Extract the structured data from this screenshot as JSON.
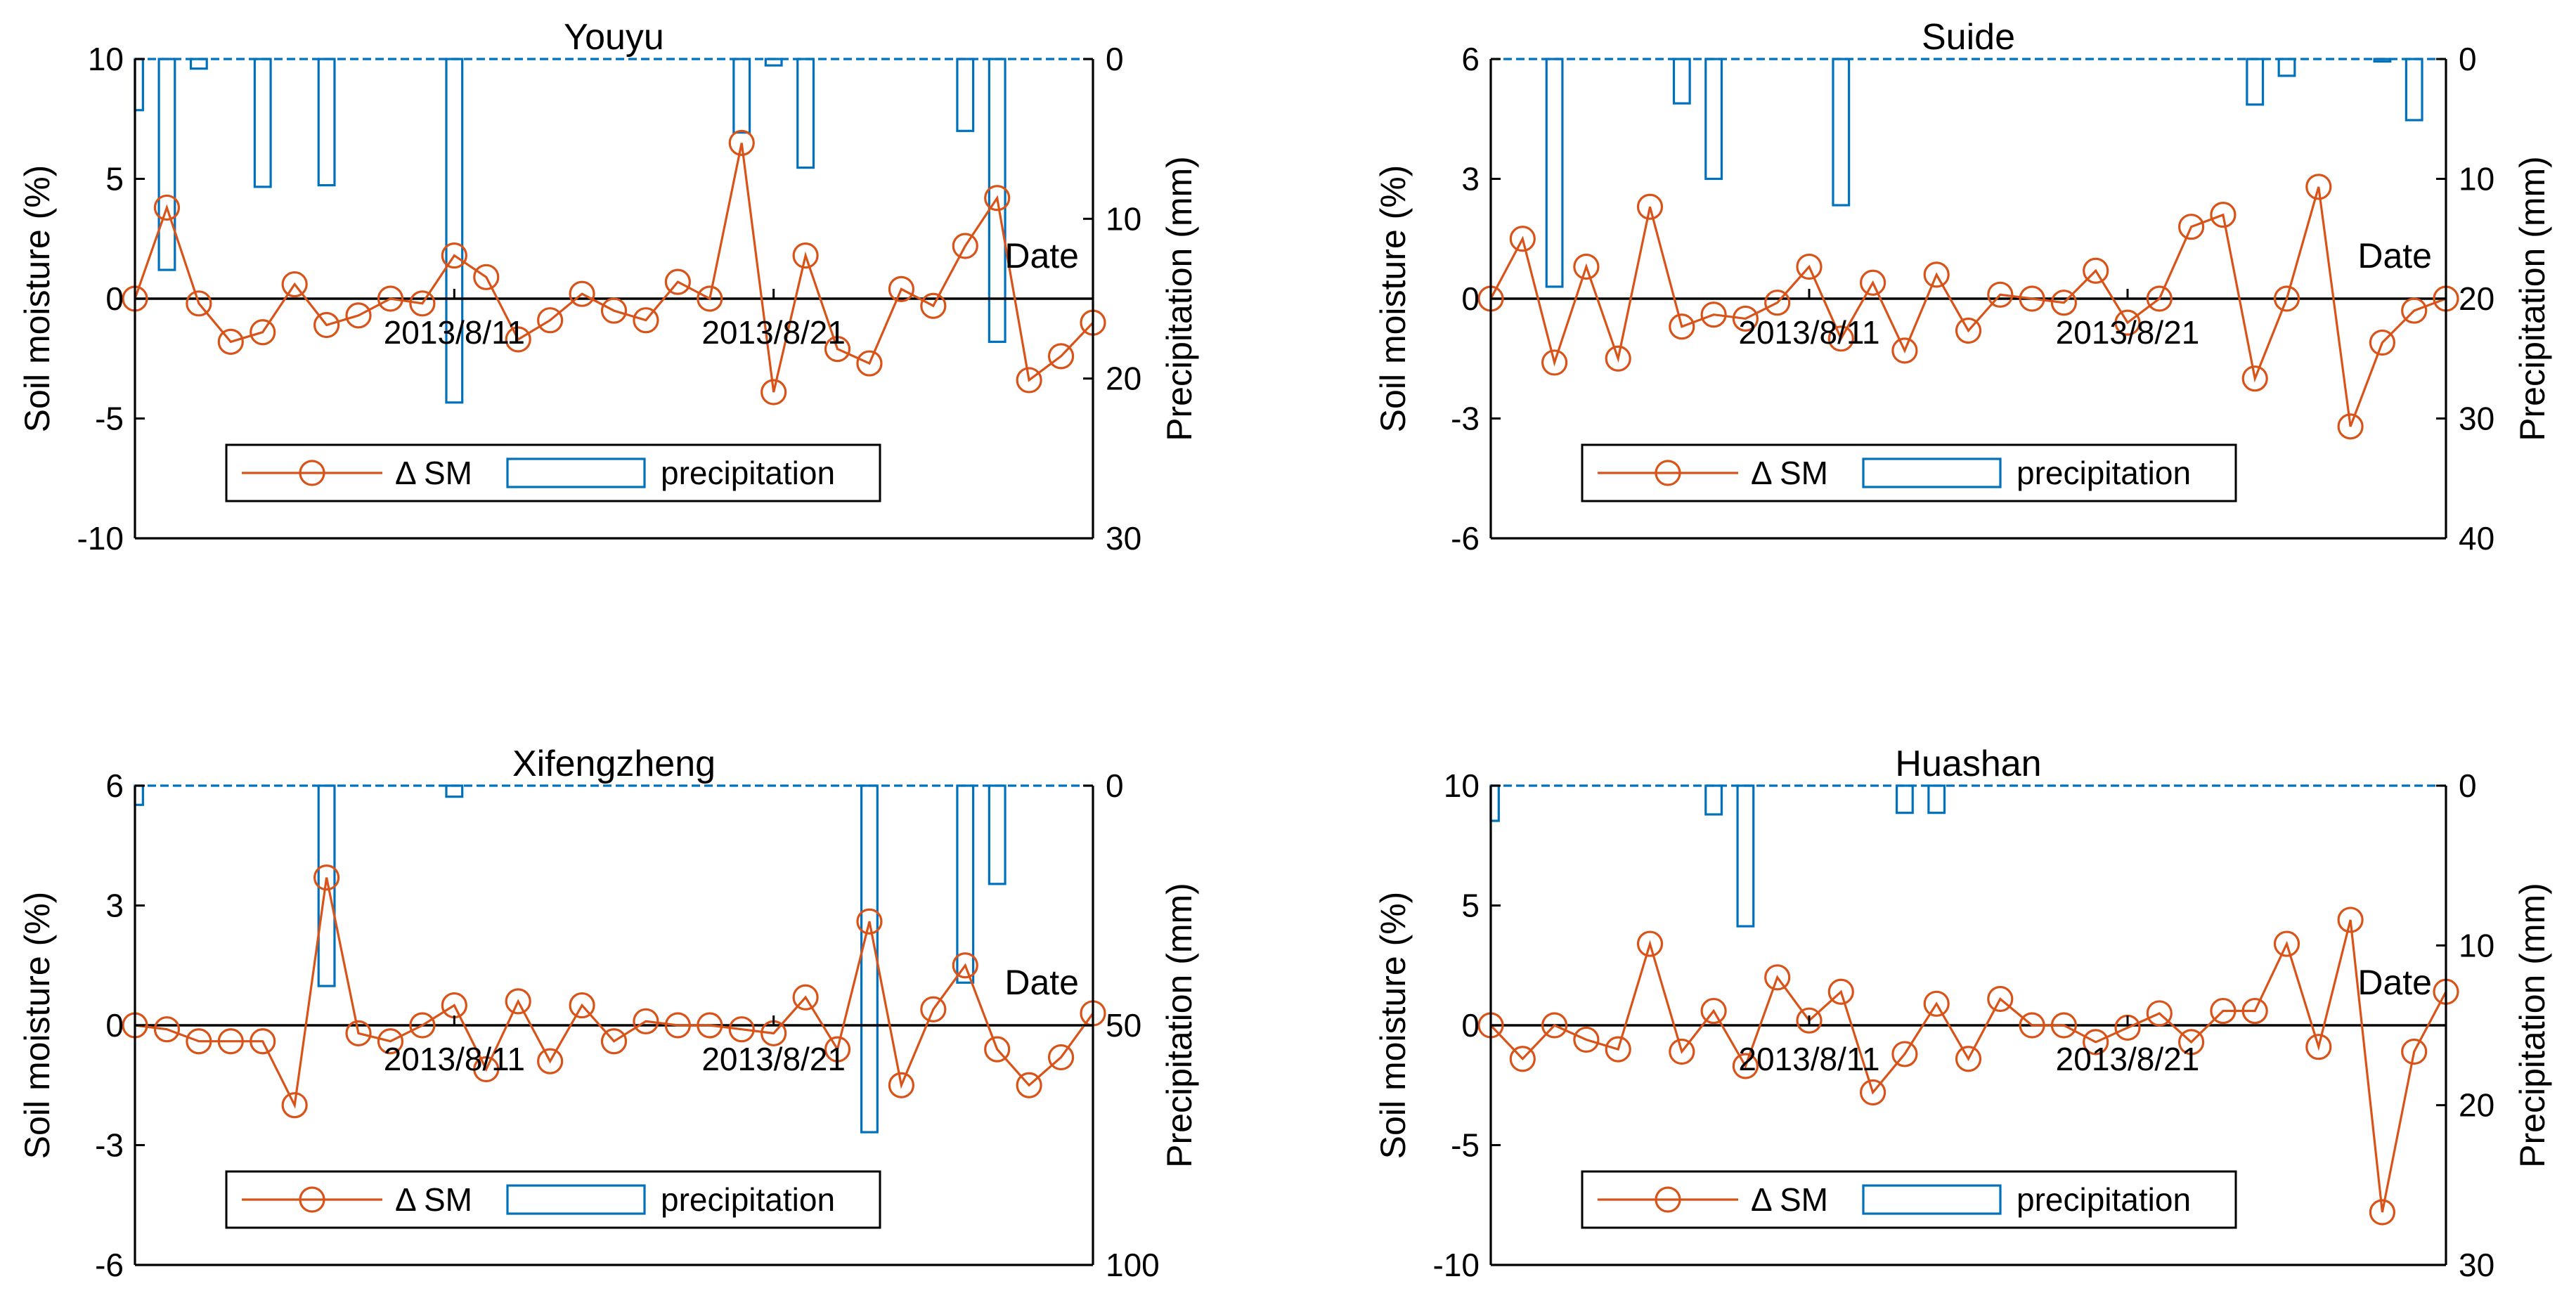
{
  "colors": {
    "sm": "#D95319",
    "precip": "#0072BD",
    "zero": "#000000",
    "axis": "#000000"
  },
  "chart_data": [
    {
      "type": "bar+line",
      "title": "Youyu",
      "ylabel_left": "Soil moisture (%)",
      "ylabel_right": "Precipitation (mm)",
      "xlabel": "Date",
      "left_ylim": [
        -10,
        10
      ],
      "left_ticks": [
        "10",
        "5",
        "0",
        "-5",
        "-10"
      ],
      "right_ylim": [
        0,
        30
      ],
      "right_ticks": [
        "0",
        "10",
        "20",
        "30"
      ],
      "x_ticks": [
        "2013/8/11",
        "2013/8/21"
      ],
      "legend": [
        "Δ SM",
        "precipitation"
      ],
      "sm": [
        0,
        3.8,
        -0.2,
        -1.8,
        -1.4,
        0.6,
        -1.1,
        -0.7,
        0,
        -0.2,
        1.8,
        0.9,
        -1.7,
        -0.9,
        0.2,
        -0.5,
        -0.9,
        0.7,
        0,
        6.5,
        -3.9,
        1.8,
        -2.1,
        -2.7,
        0.4,
        -0.3,
        2.2,
        4.2,
        -3.4,
        -2.4,
        -1
      ],
      "precip": [
        3.2,
        13.2,
        0.6,
        0,
        8,
        0,
        7.9,
        0,
        0,
        0,
        21.5,
        0,
        0,
        0,
        0,
        0,
        0,
        0,
        0,
        4.6,
        0.4,
        6.8,
        0,
        0,
        0,
        0,
        4.5,
        17.7,
        0,
        0,
        0
      ]
    },
    {
      "type": "bar+line",
      "title": "Suide",
      "ylabel_left": "Soil moisture (%)",
      "ylabel_right": "Precipitation (mm)",
      "xlabel": "Date",
      "left_ylim": [
        -6,
        6
      ],
      "left_ticks": [
        "6",
        "3",
        "0",
        "-3",
        "-6"
      ],
      "right_ylim": [
        0,
        40
      ],
      "right_ticks": [
        "0",
        "10",
        "20",
        "30",
        "40"
      ],
      "x_ticks": [
        "2013/8/11",
        "2013/8/21"
      ],
      "legend": [
        "Δ SM",
        "precipitation"
      ],
      "sm": [
        0,
        1.5,
        -1.6,
        0.8,
        -1.5,
        2.3,
        -0.7,
        -0.4,
        -0.5,
        -0.1,
        0.8,
        -1,
        0.4,
        -1.3,
        0.6,
        -0.8,
        0.1,
        0,
        -0.1,
        0.7,
        -0.6,
        0,
        1.8,
        2.1,
        -2,
        0,
        2.8,
        -3.2,
        -1.1,
        -0.3,
        0
      ],
      "precip": [
        0,
        0,
        19,
        0,
        0,
        0,
        3.7,
        10,
        0,
        0,
        0,
        12.2,
        0,
        0,
        0,
        0,
        0,
        0,
        0,
        0,
        0,
        0,
        0,
        0,
        3.8,
        1.4,
        0,
        0,
        0.2,
        5.1,
        0
      ]
    },
    {
      "type": "bar+line",
      "title": "Xifengzheng",
      "ylabel_left": "Soil moisture (%)",
      "ylabel_right": "Precipitation (mm)",
      "xlabel": "Date",
      "left_ylim": [
        -6,
        6
      ],
      "left_ticks": [
        "6",
        "3",
        "0",
        "-3",
        "-6"
      ],
      "right_ylim": [
        0,
        100
      ],
      "right_ticks": [
        "0",
        "50",
        "100"
      ],
      "x_ticks": [
        "2013/8/11",
        "2013/8/21"
      ],
      "legend": [
        "Δ SM",
        "precipitation"
      ],
      "sm": [
        0,
        -0.1,
        -0.4,
        -0.4,
        -0.4,
        -2,
        3.7,
        -0.2,
        -0.4,
        0,
        0.5,
        -1.1,
        0.6,
        -0.9,
        0.5,
        -0.4,
        0.1,
        0,
        0,
        -0.1,
        -0.2,
        0.7,
        -0.6,
        2.6,
        -1.5,
        0.4,
        1.5,
        -0.6,
        -1.5,
        -0.8,
        0.3
      ],
      "precip": [
        4,
        0,
        0,
        0,
        0,
        0,
        41.8,
        0,
        0,
        0,
        2.3,
        0,
        0,
        0,
        0,
        0,
        0,
        0,
        0,
        0,
        0,
        0,
        0,
        72.3,
        0,
        0,
        41.1,
        20.5,
        0,
        0,
        0
      ]
    },
    {
      "type": "bar+line",
      "title": "Huashan",
      "ylabel_left": "Soil moisture (%)",
      "ylabel_right": "Precipitation (mm)",
      "xlabel": "Date",
      "left_ylim": [
        -10,
        10
      ],
      "left_ticks": [
        "10",
        "5",
        "0",
        "-5",
        "-10"
      ],
      "right_ylim": [
        0,
        30
      ],
      "right_ticks": [
        "0",
        "10",
        "20",
        "30"
      ],
      "x_ticks": [
        "2013/8/11",
        "2013/8/21"
      ],
      "legend": [
        "Δ SM",
        "precipitation"
      ],
      "sm": [
        0,
        -1.4,
        0,
        -0.6,
        -1,
        3.4,
        -1.1,
        0.6,
        -1.7,
        2,
        0.2,
        1.4,
        -2.8,
        -1.2,
        0.9,
        -1.4,
        1.1,
        0,
        0,
        -0.7,
        -0.1,
        0.5,
        -0.7,
        0.6,
        0.6,
        3.4,
        -0.9,
        4.4,
        -7.8,
        -1.1,
        1.4
      ],
      "precip": [
        2.2,
        0,
        0,
        0,
        0,
        0,
        0,
        1.8,
        8.8,
        0,
        0,
        0,
        0,
        1.7,
        1.7,
        0,
        0,
        0,
        0,
        0,
        0,
        0,
        0,
        0,
        0,
        0,
        0,
        0,
        0,
        0,
        0
      ]
    }
  ]
}
